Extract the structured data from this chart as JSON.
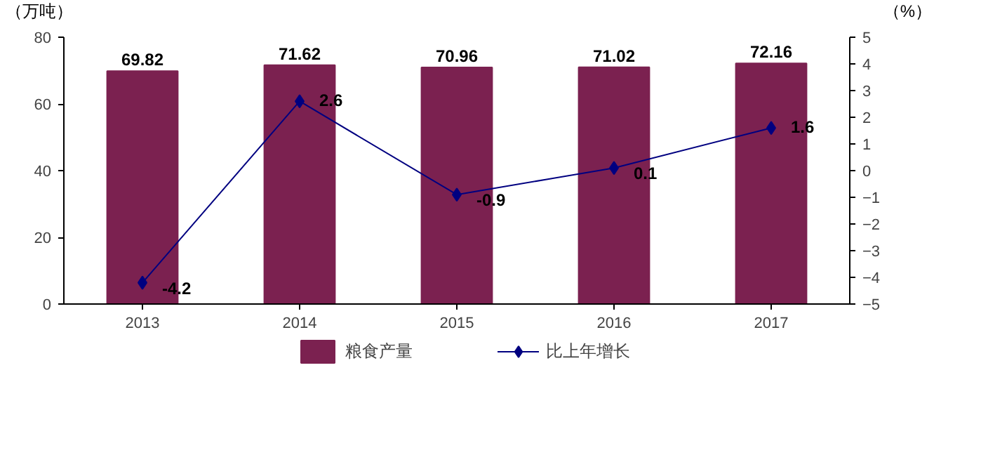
{
  "chart_data": {
    "type": "bar",
    "categories": [
      "2013",
      "2014",
      "2015",
      "2016",
      "2017"
    ],
    "ylabel": "（万吨）",
    "y2label": "（%）",
    "ylim": [
      0,
      80
    ],
    "yticks": [
      0,
      20,
      40,
      60,
      80
    ],
    "y2lim": [
      -5,
      5
    ],
    "y2ticks": [
      -5,
      -4,
      -3,
      -2,
      -1,
      0,
      1,
      2,
      3,
      4,
      5
    ],
    "grid": false,
    "legend": "bottom",
    "data_labels": true,
    "series": [
      {
        "name": "粮食产量",
        "color": "#7b2150",
        "values": [
          69.82,
          71.62,
          70.96,
          71.02,
          72.16
        ]
      },
      {
        "name": "比上年增长",
        "type": "line",
        "axis": "y2",
        "color": "#000080",
        "marker": "diamond",
        "values": [
          -4.2,
          2.6,
          -0.9,
          0.1,
          1.6
        ]
      }
    ]
  }
}
